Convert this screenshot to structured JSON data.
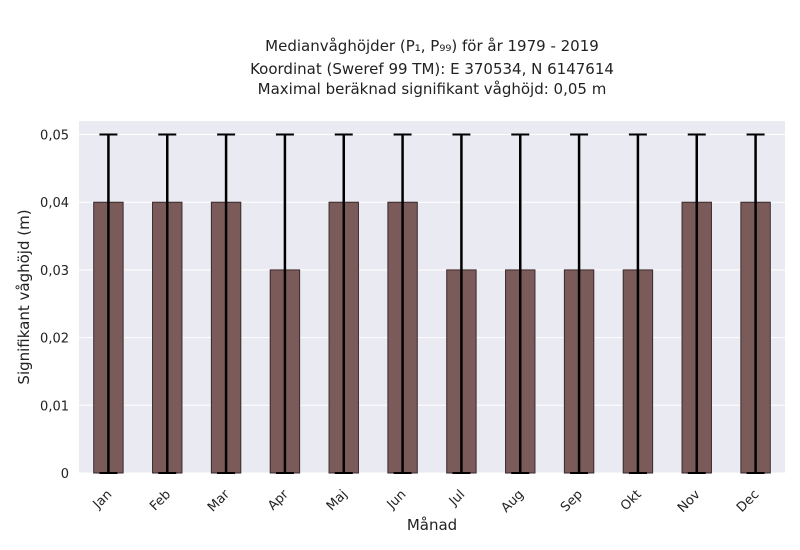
{
  "chart_data": {
    "type": "bar",
    "title_lines": [
      "Medianvåghöjder (P₁, P₉₉) för år 1979 - 2019",
      "Koordinat (Sweref 99 TM): E 370534, N 6147614",
      "Maximal beräknad signifikant våghöjd: 0,05 m"
    ],
    "xlabel": "Månad",
    "ylabel": "Signifikant våghöjd (m)",
    "categories": [
      "Jan",
      "Feb",
      "Mar",
      "Apr",
      "Maj",
      "Jun",
      "Jul",
      "Aug",
      "Sep",
      "Okt",
      "Nov",
      "Dec"
    ],
    "values": [
      0.04,
      0.04,
      0.04,
      0.03,
      0.04,
      0.04,
      0.03,
      0.03,
      0.03,
      0.03,
      0.04,
      0.04
    ],
    "error_low": [
      0,
      0,
      0,
      0,
      0,
      0,
      0,
      0,
      0,
      0,
      0,
      0
    ],
    "error_high": [
      0.05,
      0.05,
      0.05,
      0.05,
      0.05,
      0.05,
      0.05,
      0.05,
      0.05,
      0.05,
      0.05,
      0.05
    ],
    "ylim": [
      0,
      0.052
    ],
    "yticks": [
      0,
      0.01,
      0.02,
      0.03,
      0.04,
      0.05
    ],
    "ytick_labels": [
      "0",
      "0,01",
      "0,02",
      "0,03",
      "0,04",
      "0,05"
    ],
    "grid": true,
    "colors": {
      "bar": "#7b5a5a",
      "bar_edge": "#3a2a2a",
      "errorbar": "#000000",
      "plot_background": "#eaeaf2",
      "grid": "#ffffff"
    }
  }
}
